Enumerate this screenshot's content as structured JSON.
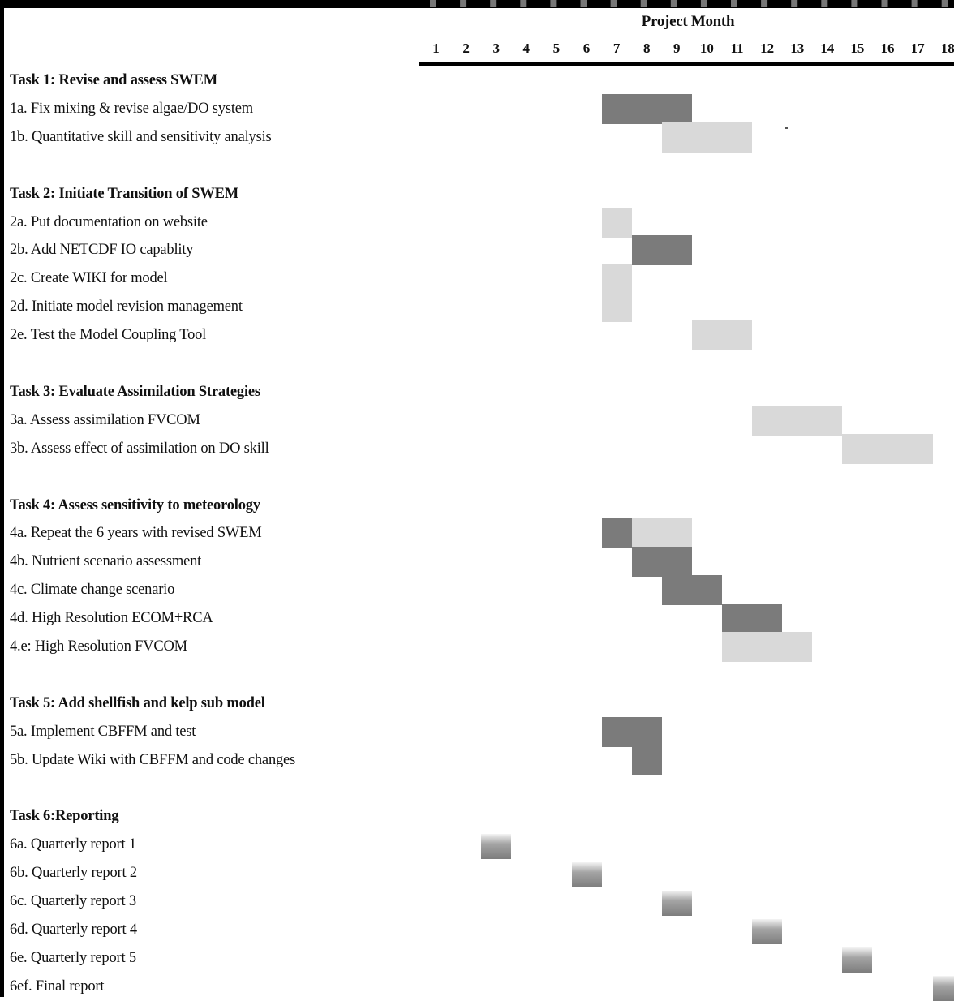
{
  "chart_data": {
    "type": "gantt",
    "title": "Project Month",
    "months": [
      "1",
      "2",
      "3",
      "4",
      "5",
      "6",
      "7",
      "8",
      "9",
      "10",
      "11",
      "12",
      "13",
      "14",
      "15",
      "16",
      "17",
      "18"
    ],
    "legend": {
      "dark": "#7b7b7b",
      "light": "#d9d9d9",
      "report": "#8a8a8a"
    },
    "rows": [
      {
        "label": "Task 1: Revise and assess SWEM",
        "header": true,
        "bars": []
      },
      {
        "label": "1a.  Fix mixing & revise algae/DO system",
        "bars": [
          {
            "start": 7,
            "end": 9,
            "shade": "dark"
          }
        ]
      },
      {
        "label": "1b. Quantitative skill and sensitivity analysis",
        "bars": [
          {
            "start": 9,
            "end": 11,
            "shade": "light"
          }
        ]
      },
      {
        "label": "",
        "spacer": true,
        "bars": []
      },
      {
        "label": "Task 2: Initiate Transition of SWEM",
        "header": true,
        "bars": []
      },
      {
        "label": "2a. Put documentation on website",
        "bars": [
          {
            "start": 7,
            "end": 7,
            "shade": "light"
          }
        ]
      },
      {
        "label": "2b. Add NETCDF IO capablity",
        "bars": [
          {
            "start": 8,
            "end": 9,
            "shade": "dark"
          }
        ]
      },
      {
        "label": "2c. Create WIKI for model",
        "bars": [
          {
            "start": 7,
            "end": 7,
            "shade": "light"
          }
        ]
      },
      {
        "label": "2d. Initiate model revision management",
        "bars": [
          {
            "start": 7,
            "end": 7,
            "shade": "light"
          }
        ]
      },
      {
        "label": "2e. Test the Model Coupling Tool",
        "bars": [
          {
            "start": 10,
            "end": 11,
            "shade": "light"
          }
        ]
      },
      {
        "label": "",
        "spacer": true,
        "bars": []
      },
      {
        "label": "Task 3: Evaluate Assimilation Strategies",
        "header": true,
        "bars": []
      },
      {
        "label": "3a. Assess assimilation FVCOM",
        "bars": [
          {
            "start": 12,
            "end": 14,
            "shade": "light"
          }
        ]
      },
      {
        "label": "3b. Assess effect of assimilation on DO skill",
        "bars": [
          {
            "start": 15,
            "end": 17,
            "shade": "light"
          }
        ]
      },
      {
        "label": "",
        "spacer": true,
        "bars": []
      },
      {
        "label": "Task 4: Assess sensitivity to meteorology",
        "header": true,
        "bars": []
      },
      {
        "label": "4a. Repeat the 6 years with revised SWEM",
        "bars": [
          {
            "start": 7,
            "end": 7,
            "shade": "dark"
          },
          {
            "start": 8,
            "end": 9,
            "shade": "light"
          }
        ]
      },
      {
        "label": "4b. Nutrient scenario assessment",
        "bars": [
          {
            "start": 8,
            "end": 9,
            "shade": "dark"
          }
        ]
      },
      {
        "label": "4c. Climate change scenario",
        "bars": [
          {
            "start": 9,
            "end": 10,
            "shade": "dark"
          }
        ]
      },
      {
        "label": "4d. High Resolution ECOM+RCA",
        "bars": [
          {
            "start": 11,
            "end": 12,
            "shade": "dark"
          }
        ]
      },
      {
        "label": "4.e: High Resolution FVCOM",
        "bars": [
          {
            "start": 11,
            "end": 13,
            "shade": "light"
          }
        ]
      },
      {
        "label": "",
        "spacer": true,
        "bars": []
      },
      {
        "label": "Task 5: Add shellfish and kelp sub model",
        "header": true,
        "bars": []
      },
      {
        "label": "5a. Implement CBFFM and test",
        "bars": [
          {
            "start": 7,
            "end": 8,
            "shade": "dark"
          }
        ]
      },
      {
        "label": "5b. Update Wiki with CBFFM and code changes",
        "bars": [
          {
            "start": 8,
            "end": 8,
            "shade": "dark"
          }
        ]
      },
      {
        "label": "",
        "spacer": true,
        "bars": []
      },
      {
        "label": "Task 6:Reporting",
        "header": true,
        "bars": []
      },
      {
        "label": "6a. Quarterly report 1",
        "bars": [
          {
            "start": 3,
            "end": 3,
            "shade": "report"
          }
        ]
      },
      {
        "label": "6b. Quarterly report 2",
        "bars": [
          {
            "start": 6,
            "end": 6,
            "shade": "report"
          }
        ]
      },
      {
        "label": "6c. Quarterly report 3",
        "bars": [
          {
            "start": 9,
            "end": 9,
            "shade": "report"
          }
        ]
      },
      {
        "label": "6d. Quarterly report 4",
        "bars": [
          {
            "start": 12,
            "end": 12,
            "shade": "report"
          }
        ]
      },
      {
        "label": "6e. Quarterly report 5",
        "bars": [
          {
            "start": 15,
            "end": 15,
            "shade": "report"
          }
        ]
      },
      {
        "label": "6ef. Final report",
        "bars": [
          {
            "start": 18,
            "end": 18,
            "shade": "report"
          }
        ]
      }
    ]
  }
}
